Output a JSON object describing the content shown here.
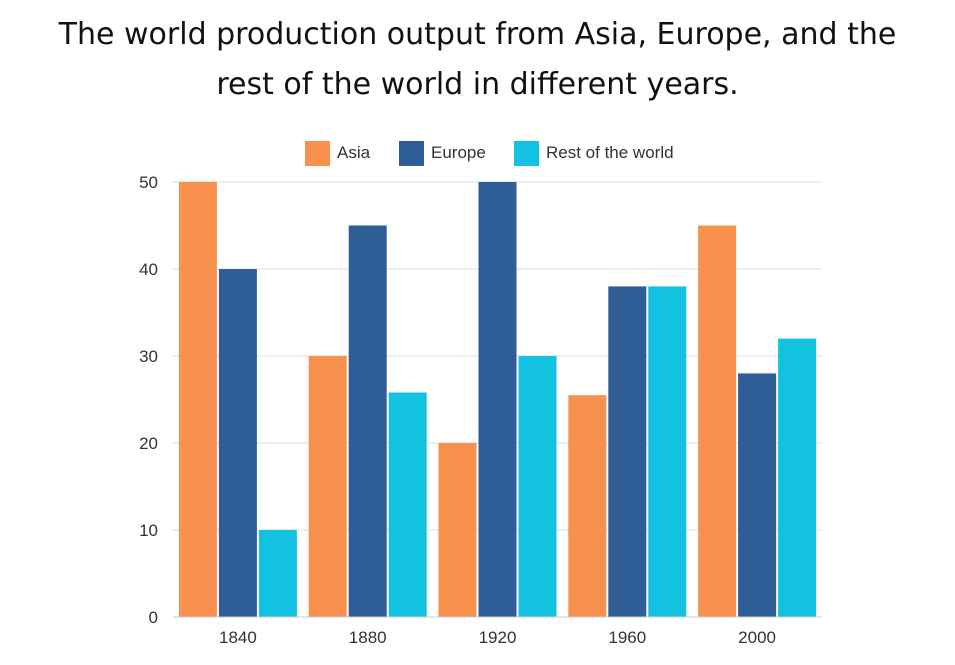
{
  "title_line1": "The world production output from Asia, Europe, and the",
  "title_line2": "rest of the world in different years.",
  "colors": {
    "Asia": "#F7914D",
    "Europe": "#2F5D96",
    "Rest of the world": "#13C2E0",
    "grid": "#dddddd"
  },
  "chart_data": {
    "type": "bar",
    "title": "The world production output from Asia, Europe, and the rest of the world in different years.",
    "categories": [
      "1840",
      "1880",
      "1920",
      "1960",
      "2000"
    ],
    "series": [
      {
        "name": "Asia",
        "values": [
          50,
          30,
          20,
          25.5,
          45
        ]
      },
      {
        "name": "Europe",
        "values": [
          40,
          45,
          50,
          38,
          28
        ]
      },
      {
        "name": "Rest of the world",
        "values": [
          10,
          25.8,
          30,
          38,
          32
        ]
      }
    ],
    "yticks": [
      0,
      10,
      20,
      30,
      40,
      50
    ],
    "ylim": [
      0,
      50
    ],
    "xlabel": "",
    "ylabel": "",
    "grid": true,
    "legend_position": "top"
  }
}
